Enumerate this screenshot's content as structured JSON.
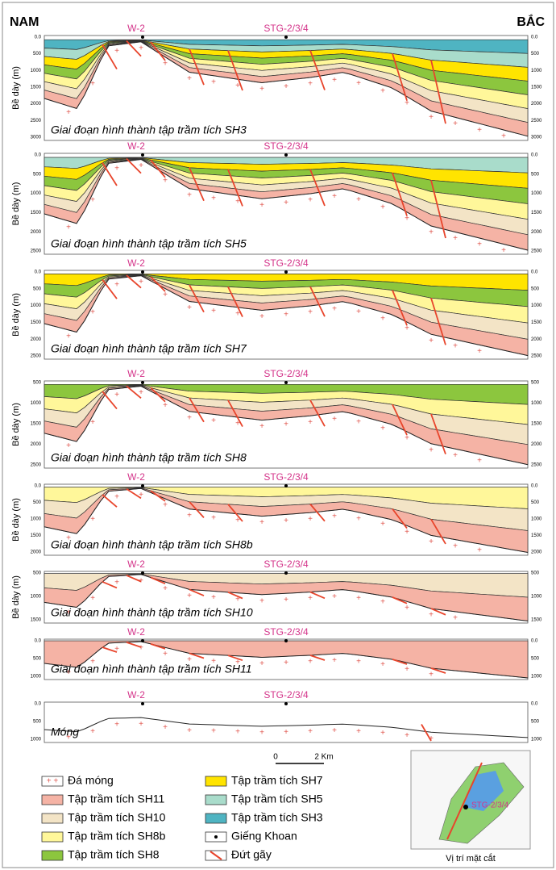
{
  "header": {
    "left": "NAM",
    "right": "BẮC"
  },
  "panels": [
    {
      "wells": [
        "W-2",
        "STG-2/3/4"
      ],
      "axis_label": "Bề dày (m)",
      "ticks": [
        "0.0",
        "500",
        "1000",
        "1500",
        "2000",
        "2500",
        "3000"
      ],
      "caption": "Giai đoạn hình thành tập trầm tích SH3"
    },
    {
      "wells": [
        "W-2",
        "STG-2/3/4"
      ],
      "axis_label": "Bề dày (m)",
      "ticks": [
        "0.0",
        "500",
        "1000",
        "1500",
        "2000",
        "2500"
      ],
      "caption": "Giai đoạn hình thành tập trầm tích SH5"
    },
    {
      "wells": [
        "W-2",
        "STG-2/3/4"
      ],
      "axis_label": "Bề dày (m)",
      "ticks": [
        "0.0",
        "500",
        "1000",
        "1500",
        "2000",
        "2500"
      ],
      "caption": "Giai đoạn hình thành tập trầm tích SH7"
    },
    {
      "wells": [
        "W-2",
        "STG-2/3/4"
      ],
      "axis_label": "Bề dày (m)",
      "ticks": [
        "500",
        "1000",
        "1500",
        "2000",
        "2500"
      ],
      "caption": "Giai đoạn hình thành tập trầm tích SH8"
    },
    {
      "wells": [
        "W-2",
        "STG-2/3/4"
      ],
      "axis_label": "Bề dày (m)",
      "ticks": [
        "0.0",
        "500",
        "1000",
        "1500",
        "2000"
      ],
      "caption": "Giai đoạn hình thành tập trầm tích SH8b"
    },
    {
      "wells": [
        "W-2",
        "STG-2/3/4"
      ],
      "axis_label": "Bề dày (m)",
      "ticks": [
        "500",
        "1000",
        "1500"
      ],
      "caption": "Giai đoạn hình thành tập trầm tích SH10"
    },
    {
      "wells": [
        "W-2",
        "STG-2/3/4"
      ],
      "ticks": [
        "0.0",
        "500",
        "1000"
      ],
      "caption": "Giai đoạn hình thành tập trầm tích  SH11"
    },
    {
      "wells": [
        "W-2",
        "STG-2/3/4"
      ],
      "ticks": [
        "0.0",
        "500",
        "1000"
      ],
      "caption": "Móng"
    }
  ],
  "legend": [
    "Đá móng",
    "Tập trầm tích SH11",
    "Tập trầm tích SH10",
    "Tập trầm tích SH8b",
    "Tập trầm tích SH8",
    "Tập trầm tích SH7",
    "Tập trầm tích SH5",
    "Tập trầm tích SH3",
    "Giếng Khoan",
    "Đứt gãy"
  ],
  "scale": {
    "start": "0",
    "end": "2 Km"
  },
  "map": {
    "well": "STG-2/3/4",
    "caption": "Vị trí mặt cắt"
  }
}
